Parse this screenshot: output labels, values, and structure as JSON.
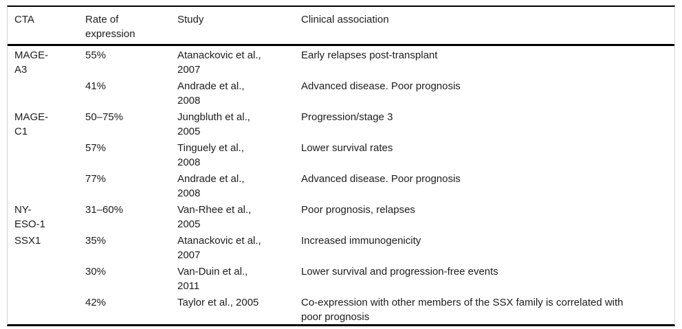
{
  "table": {
    "headers": {
      "cta": "CTA",
      "rate": "Rate of\nexpression",
      "study": "Study",
      "clinical": "Clinical association"
    },
    "rows": [
      {
        "cta": "MAGE-\nA3",
        "rate": "55%",
        "study": "Atanackovic et al.,\n2007",
        "clinical": "Early relapses post-transplant"
      },
      {
        "cta": "",
        "rate": "41%",
        "study": "Andrade et al.,\n2008",
        "clinical": "Advanced disease. Poor prognosis"
      },
      {
        "cta": "MAGE-\nC1",
        "rate": "50–75%",
        "study": "Jungbluth et al.,\n2005",
        "clinical": "Progression/stage 3"
      },
      {
        "cta": "",
        "rate": "57%",
        "study": "Tinguely et al.,\n2008",
        "clinical": "Lower survival rates"
      },
      {
        "cta": "",
        "rate": "77%",
        "study": "Andrade et al.,\n2008",
        "clinical": "Advanced disease. Poor prognosis"
      },
      {
        "cta": "NY-\nESO-1",
        "rate": "31–60%",
        "study": "Van-Rhee et al.,\n2005",
        "clinical": "Poor prognosis, relapses"
      },
      {
        "cta": "SSX1",
        "rate": "35%",
        "study": "Atanackovic et al.,\n2007",
        "clinical": "Increased immunogenicity"
      },
      {
        "cta": "",
        "rate": "30%",
        "study": "Van-Duin et al.,\n2011",
        "clinical": "Lower survival and progression-free events"
      },
      {
        "cta": "",
        "rate": "42%",
        "study": "Taylor et al., 2005",
        "clinical": "Co-expression with other members of the SSX family is correlated with\npoor prognosis"
      }
    ]
  }
}
